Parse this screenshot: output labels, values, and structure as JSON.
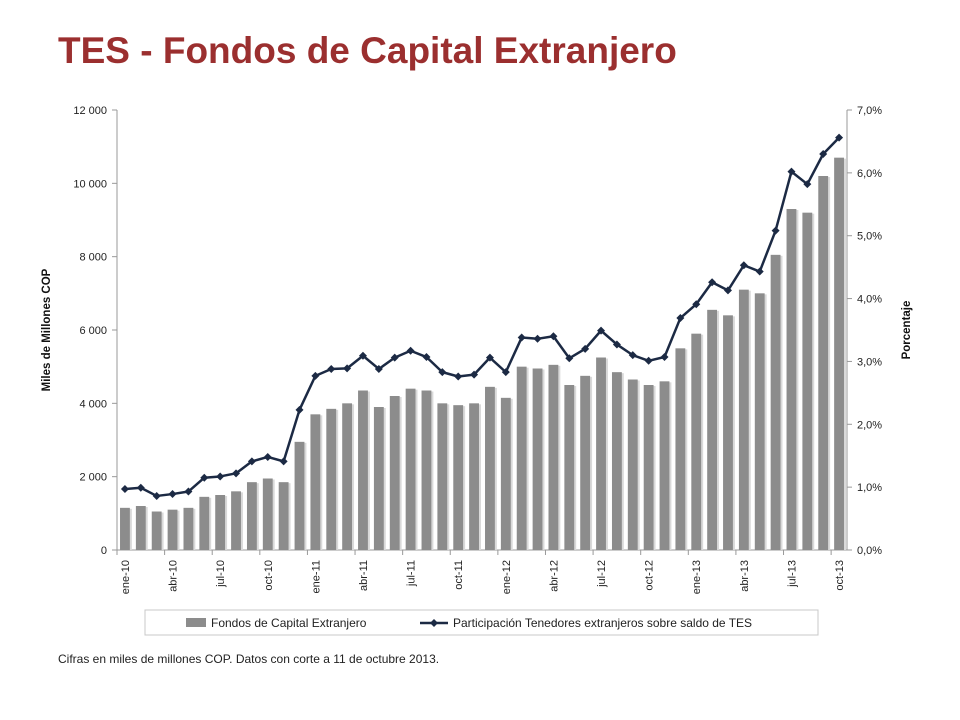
{
  "title": "TES - Fondos de Capital Extranjero",
  "footnote": "Cifras en miles de millones COP. Datos con corte a 11 de octubre 2013.",
  "colors": {
    "title": "#9b2f2f",
    "bars": "#8c8c8c",
    "line": "#1c2a44"
  },
  "chart_data": {
    "type": "bar+line",
    "ylabel": "Miles de Millones COP",
    "y2label": "Porcentaje",
    "ylim": [
      0,
      12000
    ],
    "y2lim": [
      0,
      7
    ],
    "yticks": [
      "0",
      "2 000",
      "4 000",
      "6 000",
      "8 000",
      "10 000",
      "12 000"
    ],
    "y2ticks": [
      "0,0%",
      "1,0%",
      "2,0%",
      "3,0%",
      "4,0%",
      "5,0%",
      "6,0%",
      "7,0%"
    ],
    "xticks": [
      {
        "index": 0,
        "label": "ene-10"
      },
      {
        "index": 3,
        "label": "abr-10"
      },
      {
        "index": 6,
        "label": "jul-10"
      },
      {
        "index": 9,
        "label": "oct-10"
      },
      {
        "index": 12,
        "label": "ene-11"
      },
      {
        "index": 15,
        "label": "abr-11"
      },
      {
        "index": 18,
        "label": "jul-11"
      },
      {
        "index": 21,
        "label": "oct-11"
      },
      {
        "index": 24,
        "label": "ene-12"
      },
      {
        "index": 27,
        "label": "abr-12"
      },
      {
        "index": 30,
        "label": "jul-12"
      },
      {
        "index": 33,
        "label": "oct-12"
      },
      {
        "index": 36,
        "label": "ene-13"
      },
      {
        "index": 39,
        "label": "abr-13"
      },
      {
        "index": 42,
        "label": "jul-13"
      },
      {
        "index": 45,
        "label": "oct-13"
      }
    ],
    "n": 46,
    "series": [
      {
        "name": "Fondos de Capital Extranjero",
        "kind": "bar",
        "axis": "left",
        "values": [
          1150,
          1200,
          1050,
          1100,
          1150,
          1450,
          1500,
          1600,
          1850,
          1950,
          1850,
          2950,
          3700,
          3850,
          4000,
          4350,
          3900,
          4200,
          4400,
          4350,
          4000,
          3950,
          4000,
          4450,
          4150,
          5000,
          4950,
          5050,
          4500,
          4750,
          5250,
          4850,
          4650,
          4500,
          4600,
          5500,
          5900,
          6550,
          6400,
          7100,
          7000,
          8050,
          9300,
          9200,
          10200,
          10700
        ]
      },
      {
        "name": "Participación Tenedores extranjeros sobre saldo de TES",
        "kind": "line",
        "axis": "right",
        "values": [
          0.97,
          0.99,
          0.86,
          0.89,
          0.93,
          1.15,
          1.17,
          1.22,
          1.41,
          1.48,
          1.41,
          2.23,
          2.77,
          2.88,
          2.89,
          3.09,
          2.88,
          3.06,
          3.17,
          3.07,
          2.83,
          2.76,
          2.79,
          3.06,
          2.83,
          3.38,
          3.36,
          3.4,
          3.05,
          3.2,
          3.49,
          3.27,
          3.1,
          3.01,
          3.07,
          3.69,
          3.91,
          4.26,
          4.13,
          4.53,
          4.43,
          5.08,
          6.02,
          5.82,
          6.3,
          6.56
        ]
      }
    ],
    "legend": "bottom",
    "grid": false
  }
}
